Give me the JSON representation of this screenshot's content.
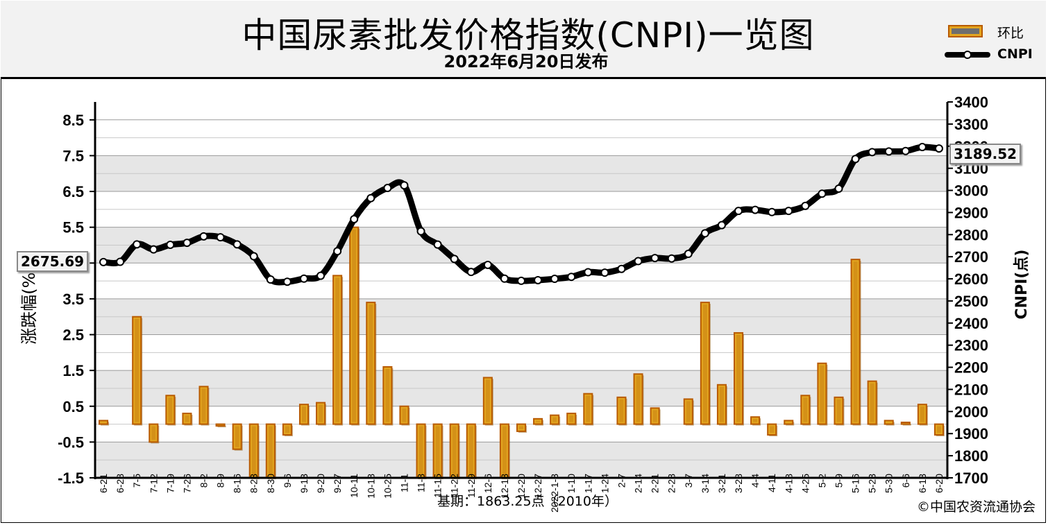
{
  "header": {
    "title": "中国尿素批发价格指数(CNPI)一览图",
    "subtitle": "2022年6月20日发布"
  },
  "legend": {
    "bar_label": "环比",
    "line_label": "CNPI"
  },
  "left_axis_label": "涨跌幅(%)",
  "right_axis_label": "CNPI(点)",
  "baseline_note": "基期：1863.25点（2010年）",
  "copyright": "©中国农资流通协会",
  "callouts": {
    "start_value": "2675.69",
    "end_value": "3189.52"
  },
  "colors": {
    "bar_fill": "#e3a51f",
    "bar_edge": "#b85a00",
    "line": "#000000",
    "marker_fill": "#ffffff",
    "grid_band": "#e6e6e6"
  },
  "chart_data": {
    "type": "bar+line",
    "categories": [
      "6-21",
      "6-28",
      "7-5",
      "7-12",
      "7-19",
      "7-26",
      "8-2",
      "8-9",
      "8-16",
      "8-23",
      "8-30",
      "9-6",
      "9-13",
      "9-20",
      "9-27",
      "10-11",
      "10-18",
      "10-25",
      "11-1",
      "11-8",
      "11-15",
      "11-22",
      "11-29",
      "12-6",
      "12-13",
      "12-20",
      "12-27",
      "2022-1-3",
      "1-10",
      "1-17",
      "1-24",
      "2-7",
      "2-14",
      "2-21",
      "2-28",
      "3-7",
      "3-14",
      "3-21",
      "3-28",
      "4-4",
      "4-11",
      "4-18",
      "4-25",
      "5-2",
      "5-9",
      "5-16",
      "5-23",
      "5-30",
      "6-6",
      "6-13",
      "6-20"
    ],
    "series": [
      {
        "name": "环比",
        "axis": "left",
        "values": [
          0.1,
          0,
          3.0,
          -0.5,
          0.8,
          0.3,
          1.05,
          -0.05,
          -0.7,
          -1.5,
          -1.5,
          -0.3,
          0.55,
          0.6,
          4.15,
          5.5,
          3.4,
          1.6,
          0.5,
          -1.5,
          -1.5,
          -1.5,
          -1.5,
          1.3,
          -1.5,
          -0.2,
          0.15,
          0.25,
          0.3,
          0.85,
          0.0,
          0.75,
          1.4,
          0.45,
          0,
          0.7,
          3.4,
          1.1,
          2.55,
          0.2,
          -0.3,
          0.1,
          0.8,
          1.7,
          0.75,
          4.6,
          1.2,
          0.1,
          0.05,
          0.55,
          -0.3
        ]
      },
      {
        "name": "CNPI",
        "axis": "right",
        "values": [
          2675.69,
          2677,
          2756,
          2733,
          2754,
          2763,
          2792,
          2788,
          2756,
          2702,
          2597,
          2587,
          2601,
          2614,
          2725,
          2870,
          2965,
          3011,
          3023,
          2815,
          2755,
          2690,
          2631,
          2663,
          2601,
          2591,
          2594,
          2600,
          2609,
          2630,
          2628,
          2645,
          2680,
          2694,
          2692,
          2713,
          2806,
          2843,
          2907,
          2912,
          2902,
          2907,
          2930,
          2985,
          3008,
          3142,
          3173,
          3176,
          3178,
          3196,
          3189.52
        ]
      }
    ],
    "left_axis": {
      "label": "涨跌幅(%)",
      "ylim": [
        -1.5,
        9.0
      ],
      "ticks": [
        -1.5,
        -0.5,
        0.5,
        1.5,
        2.5,
        3.5,
        4.5,
        5.5,
        6.5,
        7.5,
        8.5
      ]
    },
    "right_axis": {
      "label": "CNPI(点)",
      "ylim": [
        1700,
        3400
      ],
      "ticks": [
        1700,
        1800,
        1900,
        2000,
        2100,
        2200,
        2300,
        2400,
        2500,
        2600,
        2700,
        2800,
        2900,
        3000,
        3100,
        3200,
        3300,
        3400
      ]
    },
    "grid": "horizontal bands",
    "legend_position": "top-right"
  }
}
